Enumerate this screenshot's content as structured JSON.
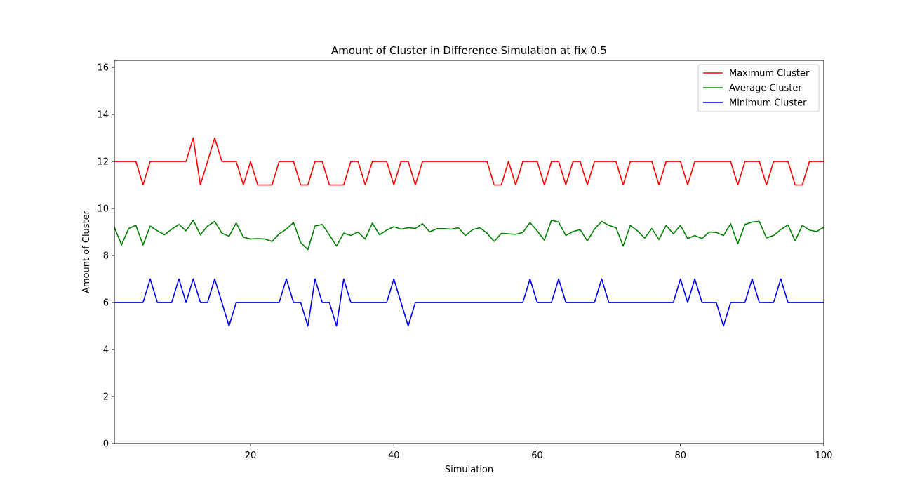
{
  "chart_data": {
    "type": "line",
    "title": "Amount of Cluster in Difference Simulation at fix 0.5",
    "xlabel": "Simulation",
    "ylabel": "Amount of Cluster",
    "xlim": [
      1,
      100
    ],
    "ylim": [
      0,
      16.3
    ],
    "xticks": [
      20,
      40,
      60,
      80,
      100
    ],
    "yticks": [
      0,
      2,
      4,
      6,
      8,
      10,
      12,
      14,
      16
    ],
    "grid": false,
    "legend_position": "top-right",
    "x": [
      1,
      2,
      3,
      4,
      5,
      6,
      7,
      8,
      9,
      10,
      11,
      12,
      13,
      14,
      15,
      16,
      17,
      18,
      19,
      20,
      21,
      22,
      23,
      24,
      25,
      26,
      27,
      28,
      29,
      30,
      31,
      32,
      33,
      34,
      35,
      36,
      37,
      38,
      39,
      40,
      41,
      42,
      43,
      44,
      45,
      46,
      47,
      48,
      49,
      50,
      51,
      52,
      53,
      54,
      55,
      56,
      57,
      58,
      59,
      60,
      61,
      62,
      63,
      64,
      65,
      66,
      67,
      68,
      69,
      70,
      71,
      72,
      73,
      74,
      75,
      76,
      77,
      78,
      79,
      80,
      81,
      82,
      83,
      84,
      85,
      86,
      87,
      88,
      89,
      90,
      91,
      92,
      93,
      94,
      95,
      96,
      97,
      98,
      99,
      100
    ],
    "series": [
      {
        "name": "Maximum Cluster",
        "color": "#ff0000",
        "values": [
          12,
          12,
          12,
          12,
          11,
          12,
          12,
          12,
          12,
          12,
          12,
          13,
          11,
          12,
          13,
          12,
          12,
          12,
          11,
          12,
          11,
          11,
          11,
          12,
          12,
          12,
          11,
          11,
          12,
          12,
          11,
          11,
          11,
          12,
          12,
          11,
          12,
          12,
          12,
          11,
          12,
          12,
          11,
          12,
          12,
          12,
          12,
          12,
          12,
          12,
          12,
          12,
          12,
          11,
          11,
          12,
          11,
          12,
          12,
          12,
          11,
          12,
          12,
          11,
          12,
          12,
          11,
          12,
          12,
          12,
          12,
          11,
          12,
          12,
          12,
          12,
          11,
          12,
          12,
          12,
          11,
          12,
          12,
          12,
          12,
          12,
          12,
          11,
          12,
          12,
          12,
          11,
          12,
          12,
          12,
          11,
          11,
          12,
          12,
          12
        ]
      },
      {
        "name": "Average Cluster",
        "color": "#008000",
        "values": [
          9.2,
          8.45,
          9.15,
          9.28,
          8.45,
          9.25,
          9.05,
          8.88,
          9.12,
          9.32,
          9.05,
          9.5,
          8.88,
          9.25,
          9.45,
          8.95,
          8.82,
          9.38,
          8.78,
          8.7,
          8.72,
          8.7,
          8.6,
          8.92,
          9.12,
          9.4,
          8.55,
          8.25,
          9.25,
          9.32,
          8.88,
          8.4,
          8.95,
          8.85,
          9.0,
          8.7,
          9.38,
          8.88,
          9.08,
          9.22,
          9.12,
          9.18,
          9.15,
          9.35,
          9.0,
          9.14,
          9.14,
          9.12,
          9.18,
          8.85,
          9.1,
          9.18,
          8.95,
          8.6,
          8.94,
          8.92,
          8.9,
          8.98,
          9.4,
          9.05,
          8.65,
          9.5,
          9.42,
          8.85,
          9.02,
          9.1,
          8.62,
          9.12,
          9.45,
          9.28,
          9.18,
          8.4,
          9.28,
          9.05,
          8.74,
          9.15,
          8.68,
          9.28,
          8.92,
          9.28,
          8.72,
          8.85,
          8.72,
          9.0,
          8.98,
          8.85,
          9.35,
          8.5,
          9.32,
          9.42,
          9.45,
          8.75,
          8.85,
          9.1,
          9.3,
          8.62,
          9.28,
          9.08,
          9.02,
          9.2
        ]
      },
      {
        "name": "Minimum Cluster",
        "color": "#0000ff",
        "values": [
          6,
          6,
          6,
          6,
          6,
          7,
          6,
          6,
          6,
          7,
          6,
          7,
          6,
          6,
          7,
          6,
          5,
          6,
          6,
          6,
          6,
          6,
          6,
          6,
          7,
          6,
          6,
          5,
          7,
          6,
          6,
          5,
          7,
          6,
          6,
          6,
          6,
          6,
          6,
          7,
          6,
          5,
          6,
          6,
          6,
          6,
          6,
          6,
          6,
          6,
          6,
          6,
          6,
          6,
          6,
          6,
          6,
          6,
          7,
          6,
          6,
          6,
          7,
          6,
          6,
          6,
          6,
          6,
          7,
          6,
          6,
          6,
          6,
          6,
          6,
          6,
          6,
          6,
          6,
          7,
          6,
          7,
          6,
          6,
          6,
          5,
          6,
          6,
          6,
          7,
          6,
          6,
          6,
          7,
          6,
          6,
          6,
          6,
          6,
          6
        ]
      }
    ]
  }
}
